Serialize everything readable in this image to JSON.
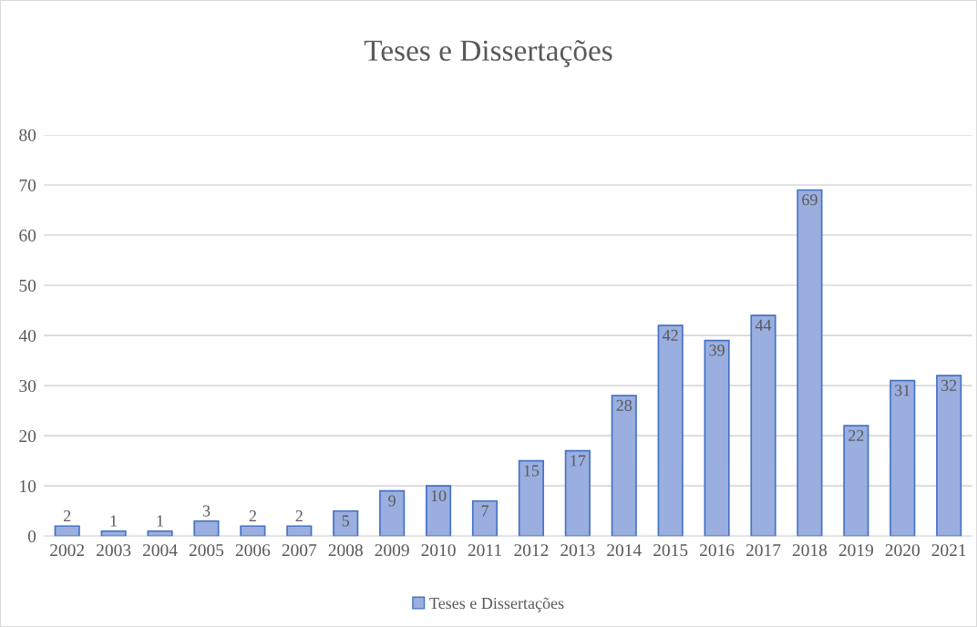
{
  "chart_data": {
    "type": "bar",
    "title": "Teses e Dissertações",
    "categories": [
      "2002",
      "2003",
      "2004",
      "2005",
      "2006",
      "2007",
      "2008",
      "2009",
      "2010",
      "2011",
      "2012",
      "2013",
      "2014",
      "2015",
      "2016",
      "2017",
      "2018",
      "2019",
      "2020",
      "2021"
    ],
    "series": [
      {
        "name": "Teses e Dissertações",
        "color": "#9aaee0",
        "values": [
          2,
          1,
          1,
          3,
          2,
          2,
          5,
          9,
          10,
          7,
          15,
          17,
          28,
          42,
          39,
          44,
          69,
          22,
          31,
          32
        ]
      }
    ],
    "ylim": [
      0,
      80
    ],
    "yticks": [
      0,
      10,
      20,
      30,
      40,
      50,
      60,
      70,
      80
    ],
    "grid": "y",
    "legend": "bottom",
    "data_labels": true
  }
}
